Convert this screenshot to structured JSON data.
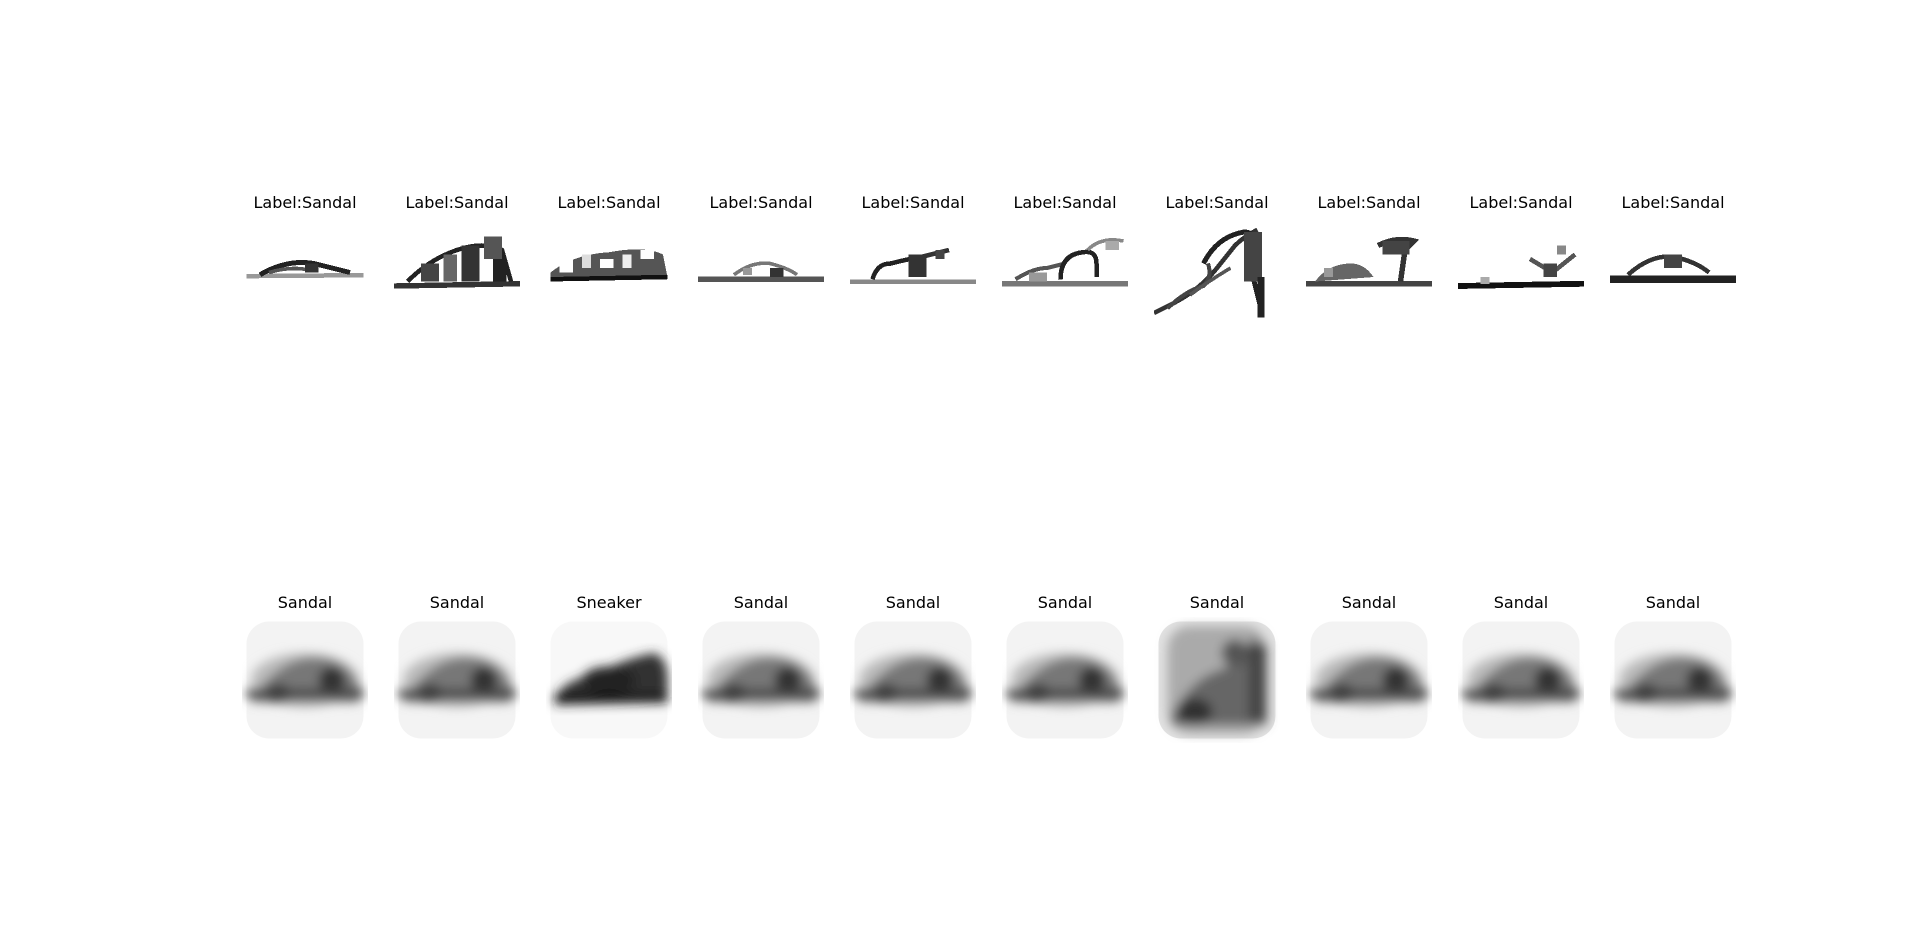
{
  "figure": {
    "rows": [
      {
        "name": "input-row",
        "titles": [
          "Label:Sandal",
          "Label:Sandal",
          "Label:Sandal",
          "Label:Sandal",
          "Label:Sandal",
          "Label:Sandal",
          "Label:Sandal",
          "Label:Sandal",
          "Label:Sandal",
          "Label:Sandal"
        ]
      },
      {
        "name": "reconstruction-row",
        "titles": [
          "Sandal",
          "Sandal",
          "Sneaker",
          "Sandal",
          "Sandal",
          "Sandal",
          "Sandal",
          "Sandal",
          "Sandal",
          "Sandal"
        ]
      }
    ]
  }
}
